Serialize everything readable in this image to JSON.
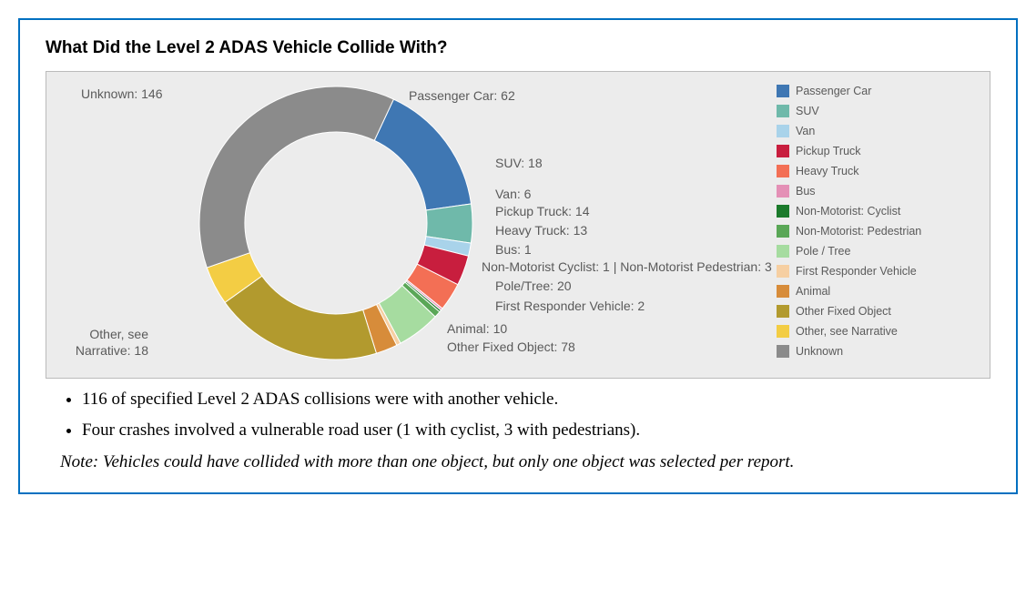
{
  "title": "What Did the Level 2 ADAS Vehicle Collide With?",
  "chart": {
    "type": "donut",
    "background_color": "#ececec",
    "border_color": "#bbbbbb",
    "inner_radius": 100,
    "outer_radius": 150,
    "label_color": "#5a5a5a",
    "label_fontsize": 14,
    "slices": [
      {
        "name": "Passenger Car",
        "label": "Passenger Car: 62",
        "value": 62,
        "color": "#3f77b3"
      },
      {
        "name": "SUV",
        "label": "SUV: 18",
        "value": 18,
        "color": "#6fb9aa"
      },
      {
        "name": "Van",
        "label": "Van: 6",
        "value": 6,
        "color": "#a9d3ea"
      },
      {
        "name": "Pickup Truck",
        "label": "Pickup Truck: 14",
        "value": 14,
        "color": "#c81e3e"
      },
      {
        "name": "Heavy Truck",
        "label": "Heavy Truck: 13",
        "value": 13,
        "color": "#f36f55"
      },
      {
        "name": "Bus",
        "label": "Bus: 1",
        "value": 1,
        "color": "#e490b6"
      },
      {
        "name": "Non-Motorist: Cyclist",
        "label": "Cyclist: 1",
        "value": 1,
        "color": "#1b7a2b"
      },
      {
        "name": "Non-Motorist: Pedestrian",
        "label": "Pedestrian: 3",
        "value": 3,
        "color": "#5aa757"
      },
      {
        "name": "Pole / Tree",
        "label": "Pole/Tree: 20",
        "value": 20,
        "color": "#a6dca0"
      },
      {
        "name": "First Responder Vehicle",
        "label": "First Responder Vehicle: 2",
        "value": 2,
        "color": "#f6cfa2"
      },
      {
        "name": "Animal",
        "label": "Animal: 10",
        "value": 10,
        "color": "#d78c3a"
      },
      {
        "name": "Other Fixed Object",
        "label": "Other Fixed Object: 78",
        "value": 78,
        "color": "#b29a2e"
      },
      {
        "name": "Other, see Narrative",
        "label": "Other, see",
        "value": 18,
        "color": "#f3cd44"
      },
      {
        "name": "Unknown",
        "label": "Unknown: 146",
        "value": 146,
        "color": "#8b8b8b"
      }
    ],
    "legend": [
      {
        "label": "Passenger Car",
        "color": "#3f77b3"
      },
      {
        "label": "SUV",
        "color": "#6fb9aa"
      },
      {
        "label": "Van",
        "color": "#a9d3ea"
      },
      {
        "label": "Pickup Truck",
        "color": "#c81e3e"
      },
      {
        "label": "Heavy Truck",
        "color": "#f36f55"
      },
      {
        "label": "Bus",
        "color": "#e490b6"
      },
      {
        "label": "Non-Motorist: Cyclist",
        "color": "#1b7a2b"
      },
      {
        "label": "Non-Motorist: Pedestrian",
        "color": "#5aa757"
      },
      {
        "label": "Pole / Tree",
        "color": "#a6dca0"
      },
      {
        "label": "First Responder Vehicle",
        "color": "#f6cfa2"
      },
      {
        "label": "Animal",
        "color": "#d78c3a"
      },
      {
        "label": "Other Fixed Object",
        "color": "#b29a2e"
      },
      {
        "label": "Other, see Narrative",
        "color": "#f3cd44"
      },
      {
        "label": "Unknown",
        "color": "#8b8b8b"
      }
    ],
    "callouts": {
      "unknown": "Unknown: 146",
      "passenger_car": "Passenger Car: 62",
      "suv": "SUV: 18",
      "van": "Van: 6",
      "pickup": "Pickup Truck: 14",
      "heavy": "Heavy Truck: 13",
      "bus": "Bus: 1",
      "nm_prefix1": "Non-Motorist",
      "cyclist": "Cyclist: 1",
      "sep": " | ",
      "nm_prefix2": "Non-Motorist",
      "pedestrian": "Pedestrian: 3",
      "poletree": "Pole/Tree: 20",
      "first_responder": "First Responder Vehicle: 2",
      "animal": "Animal: 10",
      "ofo": "Other Fixed Object: 78",
      "other1": "Other, see",
      "other2": "Narrative: 18"
    }
  },
  "bullets": [
    "116 of specified Level 2 ADAS collisions were with another vehicle.",
    "Four crashes involved a vulnerable road user (1 with cyclist, 3 with pedestrians)."
  ],
  "note": "Note: Vehicles could have collided with more than one object, but only one object was selected per report."
}
